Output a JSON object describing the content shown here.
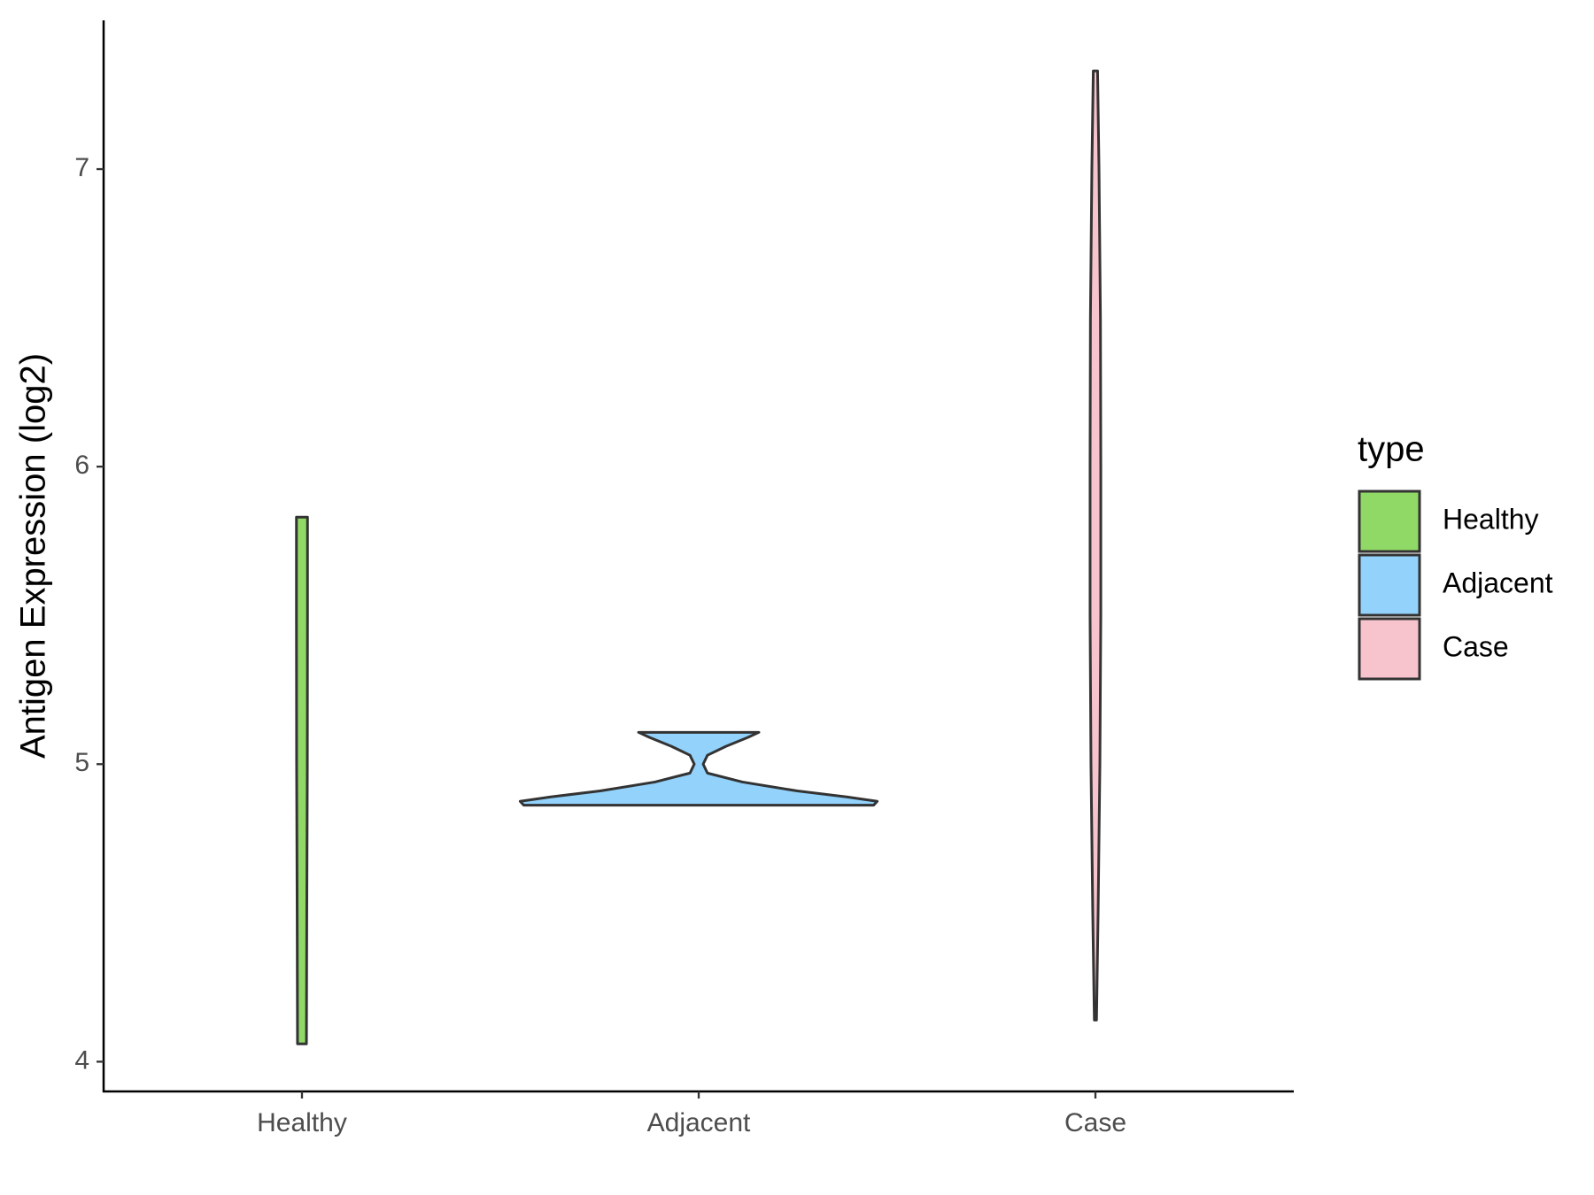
{
  "chart_data": {
    "type": "violin",
    "y_label": "Antigen Expression (log2)",
    "legend_title": "type",
    "categories": [
      "Healthy",
      "Adjacent",
      "Case"
    ],
    "series": [
      {
        "name": "Healthy",
        "color": "#91d966",
        "y": [
          4.06,
          4.5,
          5.0,
          5.5,
          5.83
        ],
        "density": [
          0.025,
          0.027,
          0.03,
          0.031,
          0.031
        ]
      },
      {
        "name": "Adjacent",
        "color": "#92d2fb",
        "y": [
          4.862,
          4.875,
          4.89,
          4.91,
          4.94,
          4.97,
          5.0,
          5.03,
          5.06,
          5.09,
          5.107
        ],
        "density": [
          0.98,
          1,
          0.828,
          0.552,
          0.245,
          0.049,
          0.025,
          0.049,
          0.153,
          0.276,
          0.337
        ]
      },
      {
        "name": "Case",
        "color": "#f7c3cd",
        "y": [
          4.14,
          4.5,
          5.0,
          5.5,
          6.0,
          6.5,
          7.0,
          7.33
        ],
        "density": [
          0.006,
          0.015,
          0.025,
          0.03,
          0.03,
          0.028,
          0.02,
          0.012
        ]
      }
    ],
    "ylim": [
      3.9,
      7.5
    ],
    "yticks": [
      4,
      5,
      6,
      7
    ]
  }
}
